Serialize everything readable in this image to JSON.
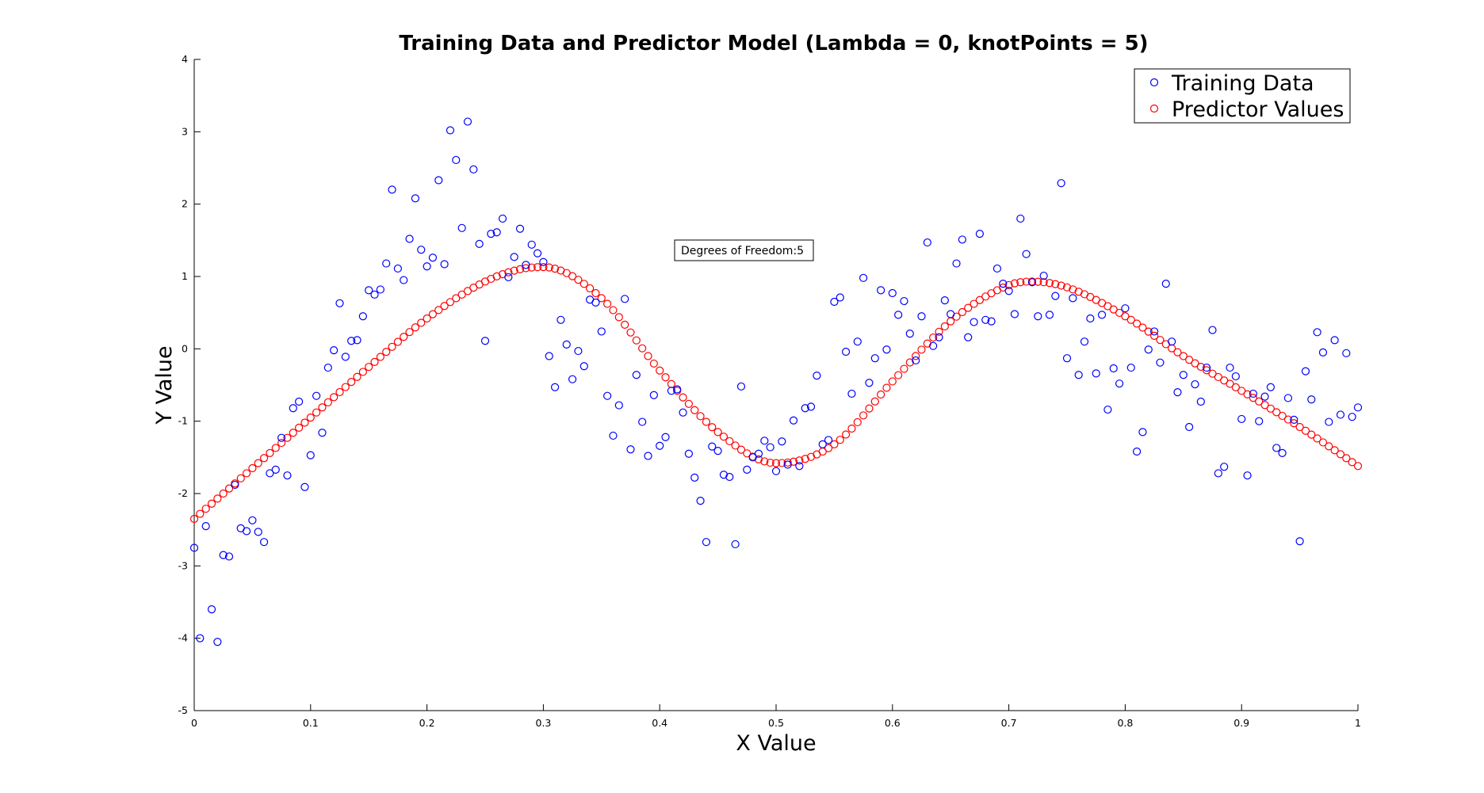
{
  "chart_data": {
    "type": "scatter",
    "title": "Training Data and Predictor Model (Lambda = 0, knotPoints = 5)",
    "xlabel": "X Value",
    "ylabel": "Y Value",
    "xlim": [
      0,
      1
    ],
    "ylim": [
      -5,
      4
    ],
    "xticks": [
      0,
      0.1,
      0.2,
      0.3,
      0.4,
      0.5,
      0.6,
      0.7,
      0.8,
      0.9,
      1
    ],
    "xtick_labels": [
      "0",
      "0.1",
      "0.2",
      "0.3",
      "0.4",
      "0.5",
      "0.6",
      "0.7",
      "0.8",
      "0.9",
      "1"
    ],
    "yticks": [
      -5,
      -4,
      -3,
      -2,
      -1,
      0,
      1,
      2,
      3,
      4
    ],
    "ytick_labels": [
      "-5",
      "-4",
      "-3",
      "-2",
      "-1",
      "0",
      "1",
      "2",
      "3",
      "4"
    ],
    "grid": false,
    "legend_position": "top-right",
    "annotation": "Degrees of Freedom:5",
    "series": [
      {
        "name": "Training Data",
        "color": "#0000ff",
        "marker": "circle-open",
        "x": [
          0.0,
          0.005,
          0.01,
          0.015,
          0.02,
          0.025,
          0.03,
          0.035,
          0.04,
          0.045,
          0.05,
          0.055,
          0.06,
          0.065,
          0.07,
          0.075,
          0.08,
          0.085,
          0.09,
          0.095,
          0.1,
          0.105,
          0.11,
          0.115,
          0.12,
          0.125,
          0.13,
          0.135,
          0.14,
          0.145,
          0.15,
          0.155,
          0.16,
          0.165,
          0.17,
          0.175,
          0.18,
          0.185,
          0.19,
          0.195,
          0.2,
          0.205,
          0.21,
          0.215,
          0.22,
          0.225,
          0.23,
          0.235,
          0.24,
          0.245,
          0.25,
          0.255,
          0.26,
          0.265,
          0.27,
          0.275,
          0.28,
          0.285,
          0.29,
          0.295,
          0.3,
          0.305,
          0.31,
          0.315,
          0.32,
          0.325,
          0.33,
          0.335,
          0.34,
          0.345,
          0.35,
          0.355,
          0.36,
          0.365,
          0.37,
          0.375,
          0.38,
          0.385,
          0.39,
          0.395,
          0.4,
          0.405,
          0.41,
          0.415,
          0.42,
          0.425,
          0.43,
          0.435,
          0.44,
          0.445,
          0.45,
          0.455,
          0.46,
          0.465,
          0.47,
          0.475,
          0.48,
          0.485,
          0.49,
          0.495,
          0.5,
          0.505,
          0.51,
          0.515,
          0.52,
          0.525,
          0.53,
          0.535,
          0.54,
          0.545,
          0.55,
          0.555,
          0.56,
          0.565,
          0.57,
          0.575,
          0.58,
          0.585,
          0.59,
          0.595,
          0.6,
          0.605,
          0.61,
          0.615,
          0.62,
          0.625,
          0.63,
          0.635,
          0.64,
          0.645,
          0.65,
          0.655,
          0.66,
          0.665,
          0.67,
          0.675,
          0.68,
          0.685,
          0.69,
          0.695,
          0.7,
          0.705,
          0.71,
          0.715,
          0.72,
          0.725,
          0.73,
          0.735,
          0.74,
          0.745,
          0.75,
          0.755,
          0.76,
          0.765,
          0.77,
          0.775,
          0.78,
          0.785,
          0.79,
          0.795,
          0.8,
          0.805,
          0.81,
          0.815,
          0.82,
          0.825,
          0.83,
          0.835,
          0.84,
          0.845,
          0.85,
          0.855,
          0.86,
          0.865,
          0.87,
          0.875,
          0.88,
          0.885,
          0.89,
          0.895,
          0.9,
          0.905,
          0.91,
          0.915,
          0.92,
          0.925,
          0.93,
          0.935,
          0.94,
          0.945,
          0.95,
          0.955,
          0.96,
          0.965,
          0.97,
          0.975,
          0.98,
          0.985,
          0.99,
          0.995,
          1.0
        ],
        "y": [
          -2.75,
          -4.0,
          -2.45,
          -3.6,
          -4.05,
          -2.85,
          -2.87,
          -1.88,
          -2.48,
          -2.52,
          -2.37,
          -2.53,
          -2.67,
          -1.72,
          -1.67,
          -1.23,
          -1.75,
          -0.82,
          -0.73,
          -1.91,
          -1.47,
          -0.65,
          -1.16,
          -0.26,
          -0.02,
          0.63,
          -0.11,
          0.11,
          0.12,
          0.45,
          0.81,
          0.75,
          0.82,
          1.18,
          2.2,
          1.11,
          0.95,
          1.52,
          2.08,
          1.37,
          1.14,
          1.26,
          2.33,
          1.17,
          3.02,
          2.61,
          1.67,
          3.14,
          2.48,
          1.45,
          0.11,
          1.59,
          1.61,
          1.8,
          0.99,
          1.27,
          1.66,
          1.16,
          1.44,
          1.32,
          1.2,
          -0.1,
          -0.53,
          0.4,
          0.06,
          -0.42,
          -0.03,
          -0.24,
          0.68,
          0.64,
          0.24,
          -0.65,
          -1.2,
          -0.78,
          0.69,
          -1.39,
          -0.36,
          -1.01,
          -1.48,
          -0.64,
          -1.34,
          -1.22,
          -0.58,
          -0.56,
          -0.88,
          -1.45,
          -1.78,
          -2.1,
          -2.67,
          -1.35,
          -1.41,
          -1.74,
          -1.77,
          -2.7,
          -0.52,
          -1.67,
          -1.5,
          -1.45,
          -1.27,
          -1.36,
          -1.69,
          -1.28,
          -1.6,
          -0.99,
          -1.62,
          -0.82,
          -0.8,
          -0.37,
          -1.32,
          -1.26,
          0.65,
          0.71,
          -0.04,
          -0.62,
          0.1,
          0.98,
          -0.47,
          -0.13,
          0.81,
          -0.01,
          0.77,
          0.47,
          0.66,
          0.21,
          -0.16,
          0.45,
          1.47,
          0.04,
          0.16,
          0.67,
          0.48,
          1.18,
          1.51,
          0.16,
          0.37,
          1.59,
          0.4,
          0.38,
          1.11,
          0.9,
          0.8,
          0.48,
          1.8,
          1.31,
          0.92,
          0.45,
          1.01,
          0.47,
          0.73,
          2.29,
          -0.13,
          0.7,
          -0.36,
          0.1,
          0.42,
          -0.34,
          0.47,
          -0.84,
          -0.27,
          -0.48,
          0.56,
          -0.26,
          -1.42,
          -1.15,
          -0.01,
          0.24,
          -0.19,
          0.9,
          0.1,
          -0.6,
          -0.36,
          -1.08,
          -0.49,
          -0.73,
          -0.26,
          0.26,
          -1.72,
          -1.63,
          -0.26,
          -0.38,
          -0.97,
          -1.75,
          -0.62,
          -1.0,
          -0.66,
          -0.53,
          -1.37,
          -1.44,
          -0.68,
          -0.98,
          -2.66,
          -0.31,
          -0.7,
          0.23,
          -0.05,
          -1.01,
          0.12,
          -0.91,
          -0.06,
          -0.94,
          -0.81
        ]
      },
      {
        "name": "Predictor Values",
        "color": "#ff0000",
        "marker": "circle-open",
        "curve": {
          "x": [
            0,
            0.05,
            0.1,
            0.15,
            0.2,
            0.25,
            0.28,
            0.3,
            0.35,
            0.4,
            0.45,
            0.5,
            0.55,
            0.6,
            0.65,
            0.7,
            0.72,
            0.75,
            0.8,
            0.85,
            0.9,
            0.95,
            1.0
          ],
          "y": [
            -2.35,
            -1.65,
            -0.95,
            -0.25,
            0.42,
            0.93,
            1.1,
            1.13,
            0.7,
            -0.3,
            -1.15,
            -1.58,
            -1.32,
            -0.45,
            0.38,
            0.88,
            0.93,
            0.85,
            0.45,
            -0.1,
            -0.58,
            -1.08,
            -1.62
          ]
        }
      }
    ]
  }
}
